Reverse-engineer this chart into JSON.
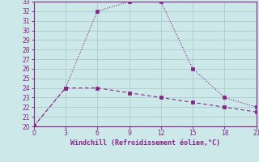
{
  "line1_x": [
    0,
    3,
    6,
    9,
    12,
    15,
    18,
    21
  ],
  "line1_y": [
    20,
    24,
    32,
    33,
    33,
    26,
    23,
    22
  ],
  "line2_x": [
    0,
    3,
    6,
    9,
    12,
    15,
    18,
    21
  ],
  "line2_y": [
    20,
    24,
    24,
    23.5,
    23,
    22.5,
    22,
    21.5
  ],
  "line_color": "#882288",
  "bg_color": "#cce8e8",
  "grid_color": "#aacccc",
  "xlabel": "Windchill (Refroidissement éolien,°C)",
  "xlim": [
    0,
    21
  ],
  "ylim": [
    20,
    33
  ],
  "xticks": [
    0,
    3,
    6,
    9,
    12,
    15,
    18,
    21
  ],
  "yticks": [
    20,
    21,
    22,
    23,
    24,
    25,
    26,
    27,
    28,
    29,
    30,
    31,
    32,
    33
  ]
}
